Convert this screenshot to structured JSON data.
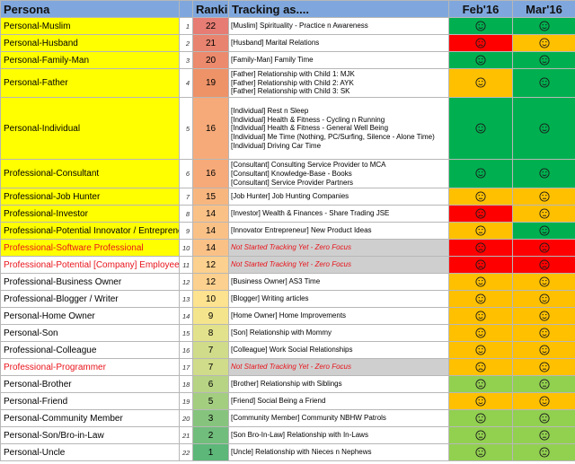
{
  "header": {
    "persona": "Persona",
    "ranking": "Ranking",
    "tracking": "Tracking as....",
    "months": [
      "Feb'16",
      "Mar'16"
    ]
  },
  "status_colors": {
    "green": "#00b050",
    "lightgreen": "#92d050",
    "amber": "#ffc000",
    "red": "#ff0000"
  },
  "rows": [
    {
      "persona": "Personal-Muslim",
      "idx": "1",
      "rank": "22",
      "rank_color": "#e67c73",
      "persona_bg": "yellow",
      "persona_red": false,
      "tracking": [
        "[Muslim] Spirituality - Practice n Awareness"
      ],
      "not_started": false,
      "feb": "green",
      "feb_icon": "smile-icon",
      "mar": "green",
      "mar_icon": "smile-icon"
    },
    {
      "persona": "Personal-Husband",
      "idx": "2",
      "rank": "21",
      "rank_color": "#e8836f",
      "persona_bg": "yellow",
      "persona_red": false,
      "tracking": [
        "[Husband] Marital Relations"
      ],
      "not_started": false,
      "feb": "red",
      "feb_icon": "frown-icon",
      "mar": "amber",
      "mar_icon": "smile-icon"
    },
    {
      "persona": "Personal-Family-Man",
      "idx": "3",
      "rank": "20",
      "rank_color": "#eb8a6c",
      "persona_bg": "yellow",
      "persona_red": false,
      "tracking": [
        "[Family-Man] Family Time"
      ],
      "not_started": false,
      "feb": "green",
      "feb_icon": "smile-icon",
      "mar": "green",
      "mar_icon": "smile-icon"
    },
    {
      "persona": "Personal-Father",
      "idx": "4",
      "rank": "19",
      "rank_color": "#ee9268",
      "persona_bg": "yellow",
      "persona_red": false,
      "tracking": [
        "[Father] Relationship with Child 1: MJK",
        "[Father] Relationship with Child 2: AYK",
        "[Father] Relationship with Child 3: SK"
      ],
      "not_started": false,
      "feb": "amber",
      "feb_icon": "smile-icon",
      "mar": "green",
      "mar_icon": "smile-icon"
    },
    {
      "persona": "Personal-Individual",
      "idx": "5",
      "rank": "16",
      "rank_color": "#f6aa79",
      "persona_bg": "yellow",
      "persona_red": false,
      "tracking": [
        "[Individual] Rest n Sleep",
        "[Individual] Health & Fitness - Cycling n Running",
        "[Individual] Health & Fitness - General Well Being",
        "[Individual] Me Time (Nothing, PC/Surfing, Silence - Alone Time)",
        "[Individual] Driving Car Time"
      ],
      "not_started": false,
      "feb": "green",
      "feb_icon": "smile-icon",
      "mar": "green",
      "mar_icon": "smile-icon"
    },
    {
      "persona": "Professional-Consultant",
      "idx": "6",
      "rank": "16",
      "rank_color": "#f6aa79",
      "persona_bg": "yellow",
      "persona_red": false,
      "tracking": [
        "[Consultant] Consulting Service Provider to MCA",
        "[Consultant] Knowledge-Base - Books",
        "[Consultant] Service Provider Partners"
      ],
      "not_started": false,
      "feb": "green",
      "feb_icon": "smile-icon",
      "mar": "green",
      "mar_icon": "smile-icon"
    },
    {
      "persona": "Professional-Job Hunter",
      "idx": "7",
      "rank": "15",
      "rank_color": "#f8b67f",
      "persona_bg": "yellow",
      "persona_red": false,
      "tracking": [
        "[Job Hunter] Job Hunting Companies"
      ],
      "not_started": false,
      "feb": "amber",
      "feb_icon": "neutral-icon",
      "mar": "amber",
      "mar_icon": "neutral-icon"
    },
    {
      "persona": "Professional-Investor",
      "idx": "8",
      "rank": "14",
      "rank_color": "#fac187",
      "persona_bg": "yellow",
      "persona_red": false,
      "tracking": [
        "[Investor] Wealth & Finances - Share Trading JSE"
      ],
      "not_started": false,
      "feb": "red",
      "feb_icon": "frown-icon",
      "mar": "amber",
      "mar_icon": "neutral-icon"
    },
    {
      "persona": "Professional-Potential Innovator / Entrepreneur",
      "idx": "9",
      "rank": "14",
      "rank_color": "#fac187",
      "persona_bg": "yellow",
      "persona_red": false,
      "tracking": [
        "[Innovator Entrepreneur] New Product Ideas"
      ],
      "not_started": false,
      "feb": "amber",
      "feb_icon": "neutral-icon",
      "mar": "green",
      "mar_icon": "smile-icon"
    },
    {
      "persona": "Professional-Software Professional",
      "idx": "10",
      "rank": "14",
      "rank_color": "#fac187",
      "persona_bg": "yellow",
      "persona_red": true,
      "tracking": [
        "Not Started Tracking Yet - Zero Focus"
      ],
      "not_started": true,
      "feb": "red",
      "feb_icon": "frown-icon",
      "mar": "red",
      "mar_icon": "frown-icon"
    },
    {
      "persona": "Professional-Potential [Company] Employee",
      "idx": "11",
      "rank": "12",
      "rank_color": "#fcd08e",
      "persona_bg": "white",
      "persona_red": true,
      "tracking": [
        "Not Started Tracking Yet - Zero Focus"
      ],
      "not_started": true,
      "feb": "red",
      "feb_icon": "frown-icon",
      "mar": "red",
      "mar_icon": "frown-icon"
    },
    {
      "persona": "Professional-Business Owner",
      "idx": "12",
      "rank": "12",
      "rank_color": "#fcd08e",
      "persona_bg": "white",
      "persona_red": false,
      "tracking": [
        "[Business Owner] AS3 Time"
      ],
      "not_started": false,
      "feb": "amber",
      "feb_icon": "smile-icon",
      "mar": "amber",
      "mar_icon": "smile-icon"
    },
    {
      "persona": "Professional-Blogger / Writer",
      "idx": "13",
      "rank": "10",
      "rank_color": "#fde28f",
      "persona_bg": "white",
      "persona_red": false,
      "tracking": [
        "[Blogger] Writing articles"
      ],
      "not_started": false,
      "feb": "amber",
      "feb_icon": "smile-icon",
      "mar": "amber",
      "mar_icon": "smile-icon"
    },
    {
      "persona": "Personal-Home Owner",
      "idx": "14",
      "rank": "9",
      "rank_color": "#f4e58d",
      "persona_bg": "white",
      "persona_red": false,
      "tracking": [
        "[Home Owner] Home Improvements"
      ],
      "not_started": false,
      "feb": "amber",
      "feb_icon": "smile-icon",
      "mar": "amber",
      "mar_icon": "smile-icon"
    },
    {
      "persona": "Personal-Son",
      "idx": "15",
      "rank": "8",
      "rank_color": "#e3e28c",
      "persona_bg": "white",
      "persona_red": false,
      "tracking": [
        "[Son] Relationship with Mommy"
      ],
      "not_started": false,
      "feb": "amber",
      "feb_icon": "smile-icon",
      "mar": "amber",
      "mar_icon": "smile-icon"
    },
    {
      "persona": "Professional-Colleague",
      "idx": "16",
      "rank": "7",
      "rank_color": "#d0dc89",
      "persona_bg": "white",
      "persona_red": false,
      "tracking": [
        "[Colleague] Work Social Relationships"
      ],
      "not_started": false,
      "feb": "amber",
      "feb_icon": "smile-icon",
      "mar": "amber",
      "mar_icon": "smile-icon"
    },
    {
      "persona": "Professional-Programmer",
      "idx": "17",
      "rank": "7",
      "rank_color": "#d0dc89",
      "persona_bg": "white",
      "persona_red": true,
      "tracking": [
        "Not Started Tracking Yet - Zero Focus"
      ],
      "not_started": true,
      "feb": "amber",
      "feb_icon": "frown-icon",
      "mar": "amber",
      "mar_icon": "neutral-icon"
    },
    {
      "persona": "Personal-Brother",
      "idx": "18",
      "rank": "6",
      "rank_color": "#b7d484",
      "persona_bg": "white",
      "persona_red": false,
      "tracking": [
        "[Brother] Relationship with Siblings"
      ],
      "not_started": false,
      "feb": "lightgreen",
      "feb_icon": "neutral-icon",
      "mar": "lightgreen",
      "mar_icon": "neutral-icon"
    },
    {
      "persona": "Personal-Friend",
      "idx": "19",
      "rank": "5",
      "rank_color": "#a3ce80",
      "persona_bg": "white",
      "persona_red": false,
      "tracking": [
        "[Friend] Social Being a Friend"
      ],
      "not_started": false,
      "feb": "amber",
      "feb_icon": "smile-icon",
      "mar": "amber",
      "mar_icon": "smile-icon"
    },
    {
      "persona": "Personal-Community Member",
      "idx": "20",
      "rank": "3",
      "rank_color": "#86c47d",
      "persona_bg": "white",
      "persona_red": false,
      "tracking": [
        "[Community Member] Community NBHW Patrols"
      ],
      "not_started": false,
      "feb": "lightgreen",
      "feb_icon": "neutral-icon",
      "mar": "lightgreen",
      "mar_icon": "neutral-icon"
    },
    {
      "persona": "Personal-Son/Bro-in-Law",
      "idx": "21",
      "rank": "2",
      "rank_color": "#71bd7b",
      "persona_bg": "white",
      "persona_red": false,
      "tracking": [
        "[Son Bro-In-Law] Relationship with In-Laws"
      ],
      "not_started": false,
      "feb": "lightgreen",
      "feb_icon": "neutral-icon",
      "mar": "lightgreen",
      "mar_icon": "neutral-icon"
    },
    {
      "persona": "Personal-Uncle",
      "idx": "22",
      "rank": "1",
      "rank_color": "#5cb779",
      "persona_bg": "white",
      "persona_red": false,
      "tracking": [
        "[Uncle] Relationship with Nieces n Nephews"
      ],
      "not_started": false,
      "feb": "lightgreen",
      "feb_icon": "neutral-icon",
      "mar": "lightgreen",
      "mar_icon": "neutral-icon"
    }
  ]
}
